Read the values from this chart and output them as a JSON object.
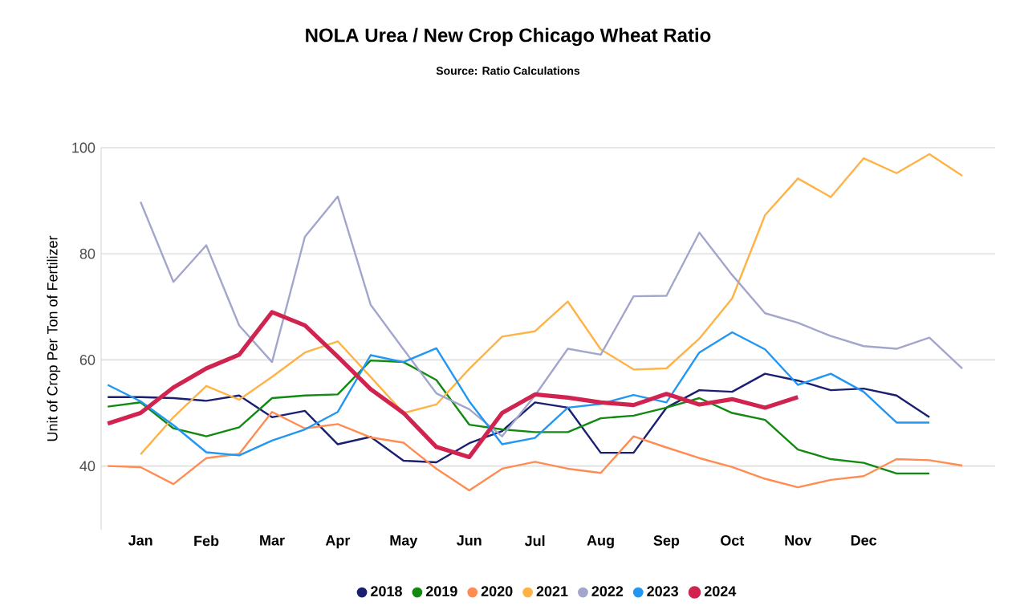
{
  "chart_data": {
    "type": "line",
    "title": "NOLA Urea / New Crop Chicago Wheat Ratio",
    "subtitle": "Source: Ratio Calculations",
    "ylabel": "Unit of Crop Per Ton of Fertilizer",
    "categories": [
      null,
      "Jan",
      null,
      "Feb",
      null,
      "Mar",
      null,
      "Apr",
      null,
      "May",
      null,
      "Jun",
      null,
      "Jul",
      null,
      "Aug",
      null,
      "Sep",
      null,
      "Oct",
      null,
      "Nov",
      null,
      "Dec",
      null,
      null,
      null,
      null
    ],
    "series": [
      {
        "name": "2018",
        "color": "#1a1f71",
        "values": [
          53,
          53,
          52.8,
          52.3,
          53.3,
          49.2,
          50.4,
          44.1,
          45.5,
          41,
          40.7,
          44.3,
          46.6,
          52,
          51,
          42.5,
          42.5,
          51,
          54.3,
          54,
          57.4,
          56.1,
          54.3,
          54.6,
          53.3,
          49.2,
          null,
          null
        ]
      },
      {
        "name": "2019",
        "color": "#108a10",
        "values": [
          51.2,
          52,
          47.1,
          45.6,
          47.3,
          52.8,
          53.3,
          53.5,
          59.9,
          59.6,
          56.2,
          47.8,
          46.9,
          46.4,
          46.4,
          49,
          49.5,
          51,
          52.8,
          50,
          48.7,
          43.1,
          41.3,
          40.6,
          38.6,
          38.6,
          null,
          null
        ]
      },
      {
        "name": "2020",
        "color": "#ff8c52",
        "values": [
          40,
          39.8,
          36.6,
          41.5,
          42.3,
          50.2,
          47.1,
          47.9,
          45.4,
          44.4,
          39.5,
          35.4,
          39.5,
          40.8,
          39.5,
          38.7,
          45.6,
          43.5,
          41.5,
          39.8,
          37.6,
          36,
          37.4,
          38.1,
          41.3,
          41.1,
          40.1,
          null
        ]
      },
      {
        "name": "2021",
        "color": "#ffb347",
        "values": [
          null,
          42.2,
          49.2,
          55.1,
          52.5,
          56.8,
          61.4,
          63.5,
          56.8,
          50,
          51.6,
          58.3,
          64.4,
          65.4,
          71,
          62,
          58.2,
          58.4,
          64,
          71.6,
          87.3,
          94.2,
          90.7,
          98,
          95.2,
          98.8,
          94.7,
          null
        ]
      },
      {
        "name": "2022",
        "color": "#a3a6cc",
        "values": [
          null,
          89.8,
          74.7,
          81.6,
          66.5,
          59.6,
          83.2,
          90.8,
          70.4,
          62,
          53.7,
          50.7,
          45.6,
          53.3,
          62.1,
          61,
          72,
          72.1,
          84,
          76,
          68.8,
          67,
          64.5,
          62.6,
          62.1,
          64.2,
          58.4,
          null
        ]
      },
      {
        "name": "2023",
        "color": "#2196f3",
        "values": [
          55.3,
          52.2,
          47.7,
          42.6,
          42,
          44.8,
          46.9,
          50.2,
          60.9,
          59.6,
          62.2,
          52.2,
          44.1,
          45.3,
          51,
          51.7,
          53.4,
          52,
          61.4,
          65.2,
          62,
          55.3,
          57.4,
          54,
          48.2,
          48.2,
          null,
          null
        ]
      },
      {
        "name": "2024",
        "color": "#d0234f",
        "values": [
          48,
          50,
          54.8,
          58.4,
          61,
          69,
          66.5,
          60.6,
          54.5,
          50,
          43.6,
          41.7,
          50,
          53.5,
          52.9,
          52,
          51.5,
          53.6,
          51.6,
          52.6,
          51,
          53,
          null,
          null,
          null,
          null,
          null,
          null
        ]
      }
    ],
    "ylim": [
      28,
      100
    ],
    "yticks": [
      40,
      60,
      80,
      100
    ],
    "grid": "y",
    "legend": "bottom"
  }
}
